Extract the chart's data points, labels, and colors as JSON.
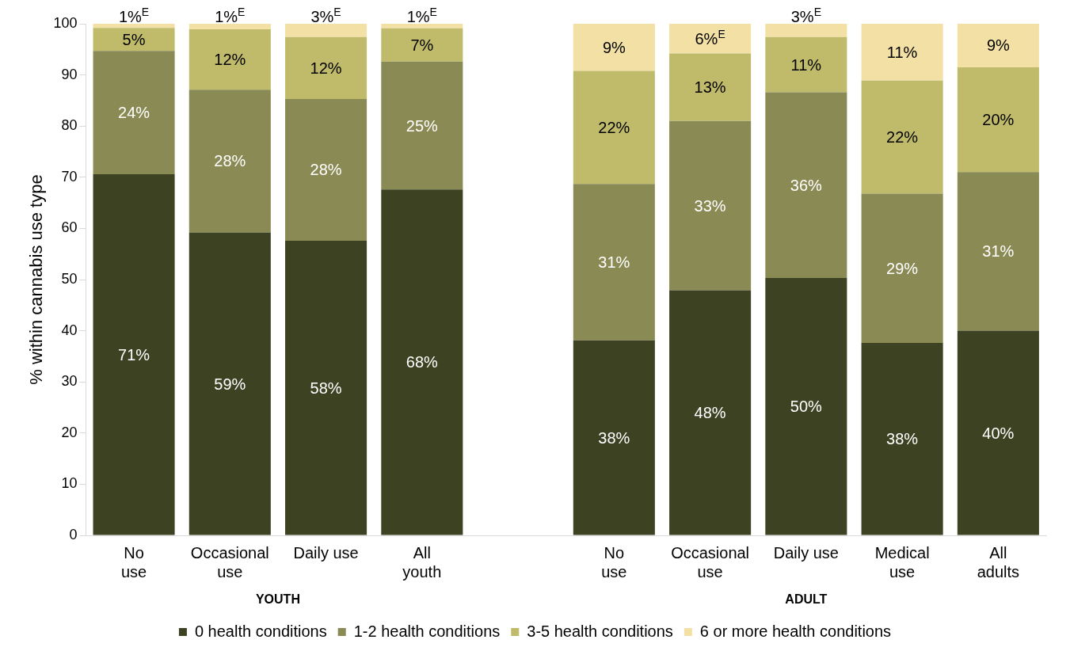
{
  "chart_data": {
    "type": "bar",
    "stacked": true,
    "ylabel": "% within cannabis use type",
    "categories": [
      "No\nuse",
      "Occasional\nuse",
      "Daily use",
      "All\nyouth",
      null,
      "No\nuse",
      "Occasional\nuse",
      "Daily use",
      "Medical\nuse",
      "All\nadults"
    ],
    "series": [
      {
        "name": "0 health conditions",
        "color": "#3c4222",
        "values": [
          70.6,
          59.2,
          57.6,
          67.6,
          null,
          38.1,
          47.9,
          50.3,
          37.6,
          40.0
        ],
        "value_labels": [
          "71%",
          "59%",
          "58%",
          "68%",
          null,
          "38%",
          "48%",
          "50%",
          "38%",
          "40%"
        ]
      },
      {
        "name": "1-2 health conditions",
        "color": "#8a8a55",
        "values": [
          24.1,
          27.9,
          27.7,
          25.0,
          null,
          30.6,
          33.1,
          36.3,
          29.2,
          31.0
        ],
        "value_labels": [
          "24%",
          "28%",
          "28%",
          "25%",
          null,
          "31%",
          "33%",
          "36%",
          "29%",
          "31%"
        ]
      },
      {
        "name": "3-5 health conditions",
        "color": "#c0bb6b",
        "values": [
          4.5,
          11.8,
          12.1,
          6.5,
          null,
          22.1,
          13.2,
          10.8,
          22.1,
          20.5
        ],
        "value_labels": [
          "5%",
          "12%",
          "12%",
          "7%",
          null,
          "22%",
          "13%",
          "11%",
          "22%",
          "20%"
        ]
      },
      {
        "name": "6 or more health conditions",
        "color": "#f3e0a5",
        "values": [
          0.8,
          1.1,
          2.6,
          0.9,
          null,
          9.2,
          5.8,
          2.6,
          11.1,
          8.5
        ],
        "value_labels": [
          "1%$^{E}$",
          "1%$^{E}$",
          "3%$^{E}$",
          "1%$^{E}$",
          null,
          "9%",
          "6%$^{E}$",
          "3%$^{E}$",
          "11%",
          "9%"
        ]
      }
    ],
    "annotations": [
      "YOUTH",
      "ADULT"
    ],
    "ylim": [
      0,
      100
    ],
    "yticks": [
      0,
      10,
      20,
      30,
      40,
      50,
      60,
      70,
      80,
      90,
      100
    ],
    "grid": false,
    "legend": "bottom"
  }
}
